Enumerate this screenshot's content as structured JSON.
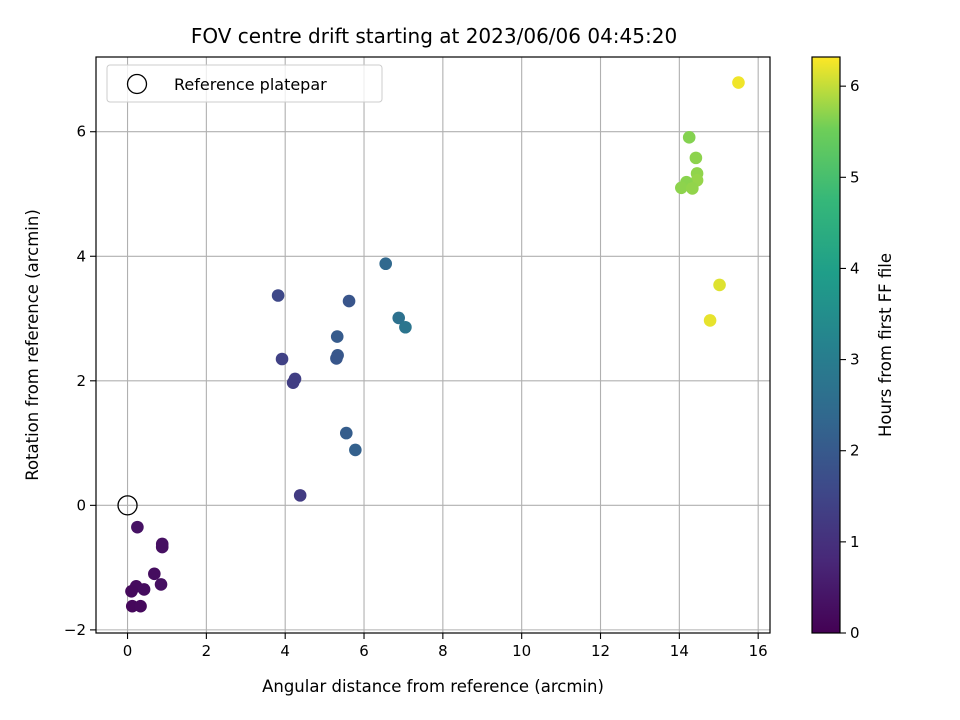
{
  "chart_data": {
    "type": "scatter",
    "title": "FOV centre drift starting at 2023/06/06 04:45:20",
    "xlabel": "Angular distance from reference (arcmin)",
    "ylabel": "Rotation from reference (arcmin)",
    "colorbar_label": "Hours from first FF file",
    "xlim": [
      -0.8,
      16.3
    ],
    "ylim": [
      -2.05,
      7.2
    ],
    "xticks": [
      0,
      2,
      4,
      6,
      8,
      10,
      12,
      14,
      16
    ],
    "yticks": [
      -2,
      0,
      2,
      4,
      6
    ],
    "clim": [
      0,
      6.32
    ],
    "cticks": [
      0,
      1,
      2,
      3,
      4,
      5,
      6
    ],
    "colormap": "viridis",
    "grid": true,
    "legend": {
      "placement": "top-left",
      "entries": [
        {
          "label": "Reference platepar",
          "marker": "open-circle",
          "x": 0,
          "y": 0
        }
      ]
    },
    "points": [
      {
        "x": 0.25,
        "y": -0.35,
        "t": 0.35
      },
      {
        "x": 0.88,
        "y": -0.62,
        "t": 0.3
      },
      {
        "x": 0.88,
        "y": -0.67,
        "t": 0.3
      },
      {
        "x": 0.68,
        "y": -1.1,
        "t": 0.25
      },
      {
        "x": 0.85,
        "y": -1.27,
        "t": 0.28
      },
      {
        "x": 0.22,
        "y": -1.3,
        "t": 0.2
      },
      {
        "x": 0.42,
        "y": -1.35,
        "t": 0.22
      },
      {
        "x": 0.1,
        "y": -1.38,
        "t": 0.18
      },
      {
        "x": 0.12,
        "y": -1.62,
        "t": 0.15
      },
      {
        "x": 0.33,
        "y": -1.62,
        "t": 0.17
      },
      {
        "x": 3.82,
        "y": 3.37,
        "t": 1.55
      },
      {
        "x": 3.92,
        "y": 2.35,
        "t": 1.4
      },
      {
        "x": 4.25,
        "y": 2.03,
        "t": 1.35
      },
      {
        "x": 4.2,
        "y": 1.97,
        "t": 1.32
      },
      {
        "x": 4.38,
        "y": 0.16,
        "t": 1.25
      },
      {
        "x": 5.32,
        "y": 2.71,
        "t": 2.05
      },
      {
        "x": 5.33,
        "y": 2.41,
        "t": 1.95
      },
      {
        "x": 5.3,
        "y": 2.36,
        "t": 1.92
      },
      {
        "x": 5.62,
        "y": 3.28,
        "t": 1.88
      },
      {
        "x": 5.55,
        "y": 1.16,
        "t": 2.1
      },
      {
        "x": 5.78,
        "y": 0.89,
        "t": 2.2
      },
      {
        "x": 6.55,
        "y": 3.88,
        "t": 2.4
      },
      {
        "x": 6.88,
        "y": 3.01,
        "t": 2.65
      },
      {
        "x": 7.05,
        "y": 2.86,
        "t": 2.75
      },
      {
        "x": 14.25,
        "y": 5.91,
        "t": 5.65
      },
      {
        "x": 14.42,
        "y": 5.58,
        "t": 5.7
      },
      {
        "x": 14.45,
        "y": 5.33,
        "t": 5.72
      },
      {
        "x": 14.45,
        "y": 5.22,
        "t": 5.75
      },
      {
        "x": 14.18,
        "y": 5.19,
        "t": 5.68
      },
      {
        "x": 14.05,
        "y": 5.1,
        "t": 5.7
      },
      {
        "x": 14.33,
        "y": 5.09,
        "t": 5.73
      },
      {
        "x": 15.5,
        "y": 6.79,
        "t": 6.25
      },
      {
        "x": 15.02,
        "y": 3.54,
        "t": 6.15
      },
      {
        "x": 14.78,
        "y": 2.97,
        "t": 6.2
      }
    ]
  }
}
